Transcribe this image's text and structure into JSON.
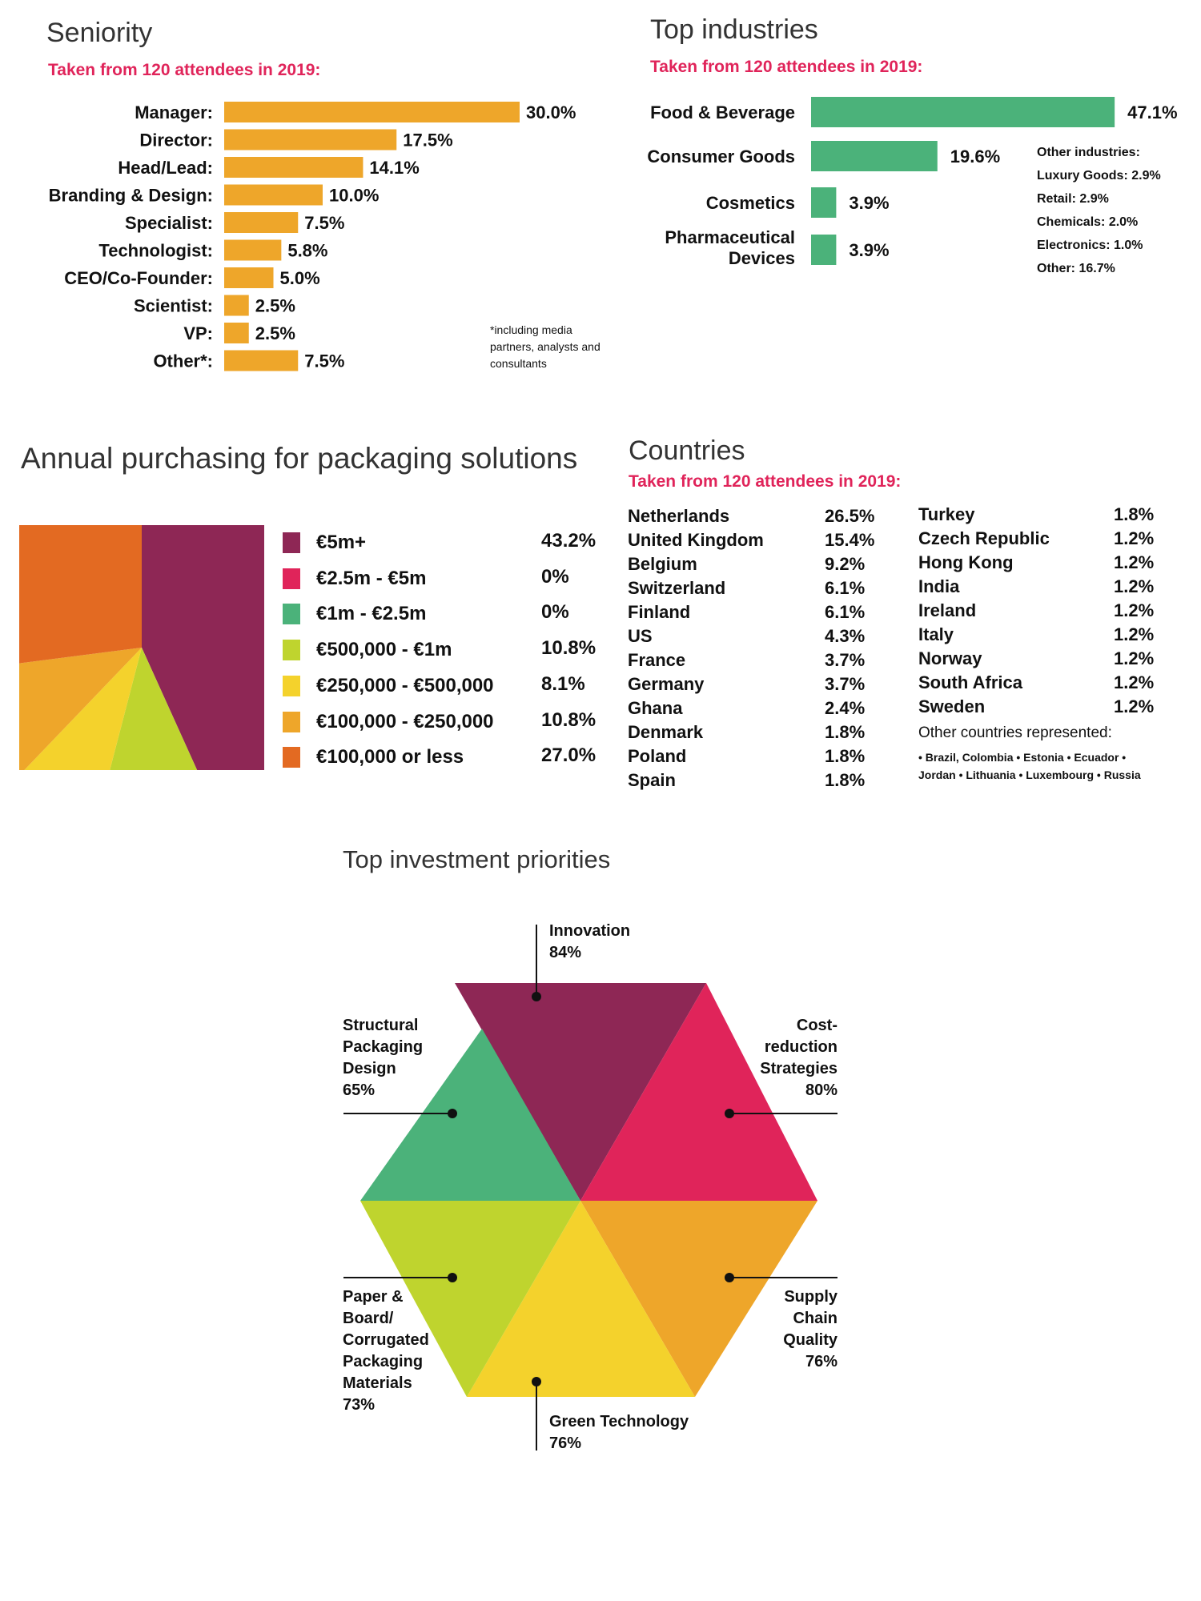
{
  "colors": {
    "orange_bar": "#eea62a",
    "green_bar": "#4bb27a",
    "pink": "#e0245a",
    "purple": "#8e2755"
  },
  "seniority": {
    "title": "Seniority",
    "subtitle": "Taken from 120 attendees in 2019:",
    "footnote": "*including media partners, analysts and consultants",
    "chart_data": {
      "type": "bar",
      "orientation": "horizontal",
      "categories": [
        "Manager:",
        "Director:",
        "Head/Lead:",
        "Branding & Design:",
        "Specialist:",
        "Technologist:",
        "CEO/Co-Founder:",
        "Scientist:",
        "VP:",
        "Other*:"
      ],
      "values": [
        30.0,
        17.5,
        14.1,
        10.0,
        7.5,
        5.8,
        5.0,
        2.5,
        2.5,
        7.5
      ],
      "value_labels": [
        "30.0%",
        "17.5%",
        "14.1%",
        "10.0%",
        "7.5%",
        "5.8%",
        "5.0%",
        "2.5%",
        "2.5%",
        "7.5%"
      ],
      "color": "#eea62a"
    }
  },
  "industries": {
    "title": "Top industries",
    "subtitle": "Taken from 120 attendees in 2019:",
    "other_title": "Other industries:",
    "other_items": [
      "Luxury Goods: 2.9%",
      "Retail: 2.9%",
      "Chemicals: 2.0%",
      "Electronics: 1.0%",
      "Other: 16.7%"
    ],
    "chart_data": {
      "type": "bar",
      "orientation": "horizontal",
      "categories": [
        "Food & Beverage",
        "Consumer Goods",
        "Cosmetics",
        "Pharmaceutical Devices"
      ],
      "values": [
        47.1,
        19.6,
        3.9,
        3.9
      ],
      "value_labels": [
        "47.1%",
        "19.6%",
        "3.9%",
        "3.9%"
      ],
      "color": "#4bb27a"
    }
  },
  "purchasing": {
    "title": "Annual purchasing for packaging solutions",
    "chart_data": {
      "type": "pie",
      "categories": [
        "€5m+",
        "€2.5m - €5m",
        "€1m - €2.5m",
        "€500,000 - €1m",
        "€250,000 - €500,000",
        "€100,000 - €250,000",
        "€100,000 or less"
      ],
      "values": [
        43.2,
        0,
        0,
        10.8,
        8.1,
        10.8,
        27.0
      ],
      "value_labels": [
        "43.2%",
        "0%",
        "0%",
        "10.8%",
        "8.1%",
        "10.8%",
        "27.0%"
      ],
      "colors": [
        "#8e2755",
        "#e0245a",
        "#4bb27a",
        "#bfd42e",
        "#f4d22c",
        "#eea62a",
        "#e36a22"
      ]
    }
  },
  "countries": {
    "title": "Countries",
    "subtitle": "Taken from 120 attendees in 2019:",
    "col1": [
      {
        "name": "Netherlands",
        "value": "26.5%"
      },
      {
        "name": "United Kingdom",
        "value": "15.4%"
      },
      {
        "name": "Belgium",
        "value": "9.2%"
      },
      {
        "name": "Switzerland",
        "value": "6.1%"
      },
      {
        "name": "Finland",
        "value": "6.1%"
      },
      {
        "name": "US",
        "value": "4.3%"
      },
      {
        "name": "France",
        "value": "3.7%"
      },
      {
        "name": "Germany",
        "value": "3.7%"
      },
      {
        "name": "Ghana",
        "value": "2.4%"
      },
      {
        "name": "Denmark",
        "value": "1.8%"
      },
      {
        "name": "Poland",
        "value": "1.8%"
      },
      {
        "name": "Spain",
        "value": "1.8%"
      }
    ],
    "col2": [
      {
        "name": "Turkey",
        "value": "1.8%"
      },
      {
        "name": "Czech Republic",
        "value": "1.2%"
      },
      {
        "name": "Hong Kong",
        "value": "1.2%"
      },
      {
        "name": "India",
        "value": "1.2%"
      },
      {
        "name": "Ireland",
        "value": "1.2%"
      },
      {
        "name": "Italy",
        "value": "1.2%"
      },
      {
        "name": "Norway",
        "value": "1.2%"
      },
      {
        "name": "South Africa",
        "value": "1.2%"
      },
      {
        "name": "Sweden",
        "value": "1.2%"
      }
    ],
    "other_title": "Other countries represented:",
    "other_line1": "• Brazil, Colombia • Estonia • Ecuador •",
    "other_line2": "Jordan • Lithuania • Luxembourg • Russia"
  },
  "priorities": {
    "title": "Top investment priorities",
    "chart_data": {
      "type": "other",
      "categories": [
        "Innovation",
        "Cost-reduction Strategies",
        "Supply Chain Quality",
        "Green Technology",
        "Paper & Board/ Corrugated Packaging Materials",
        "Structural Packaging Design"
      ],
      "values": [
        84,
        80,
        76,
        76,
        73,
        65
      ],
      "colors": [
        "#8e2755",
        "#e0245a",
        "#eea62a",
        "#f4d22c",
        "#bfd42e",
        "#4bb27a"
      ]
    },
    "labels": {
      "innovation": [
        "Innovation",
        "84%"
      ],
      "cost": [
        "Cost-",
        "reduction",
        "Strategies",
        "80%"
      ],
      "supply": [
        "Supply",
        "Chain",
        "Quality",
        "76%"
      ],
      "green": [
        "Green Technology",
        "76%"
      ],
      "paper": [
        "Paper &",
        "Board/",
        "Corrugated",
        "Packaging",
        "Materials",
        "73%"
      ],
      "structural": [
        "Structural",
        "Packaging",
        "Design",
        "65%"
      ]
    }
  }
}
